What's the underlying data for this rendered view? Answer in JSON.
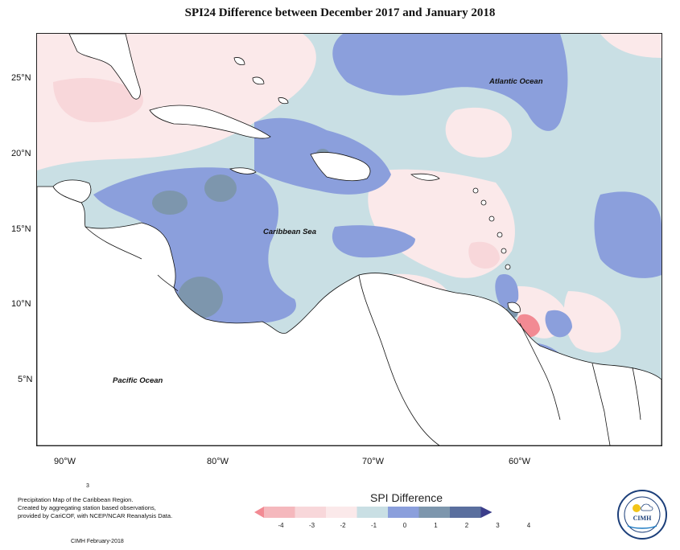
{
  "title": "SPI24 Difference between December 2017 and January 2018",
  "map": {
    "labels": {
      "atlantic": "Atlantic Ocean",
      "caribbean": "Caribbean Sea",
      "pacific": "Pacific Ocean"
    },
    "lat_ticks": [
      "25°N",
      "20°N",
      "15°N",
      "10°N",
      "5°N"
    ],
    "lon_ticks": [
      "90°W",
      "80°W",
      "70°W",
      "60°W"
    ]
  },
  "legend": {
    "title": "SPI Difference",
    "ticks": [
      "-4",
      "-3",
      "-2",
      "-1",
      "0",
      "1",
      "2",
      "3",
      "4"
    ],
    "colors": [
      "#f28a93",
      "#f5b8bd",
      "#f8d7da",
      "#fbe9ea",
      "#c9dfe4",
      "#8b9fdc",
      "#7d96ad",
      "#5a6f9e",
      "#3b3d8a"
    ]
  },
  "footer": {
    "marker": "3",
    "description_lines": [
      "Precipitation Map of the Caribbean Region.",
      "Created by aggregating station based observations,",
      "provided by CariCOF, with NCEP/NCAR Reanalysis Data."
    ],
    "credit": "CIMH February-2018"
  },
  "logo": {
    "text": "CIMH"
  }
}
